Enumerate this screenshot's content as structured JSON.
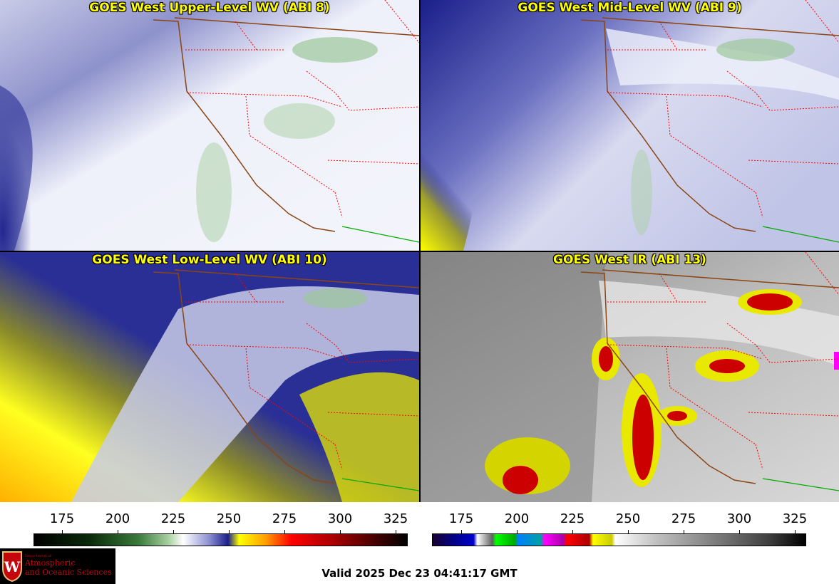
{
  "panels": [
    {
      "title": "GOES West Upper-Level WV (ABI 8)",
      "palette": "wv-upper"
    },
    {
      "title": "GOES West Mid-Level WV (ABI 9)",
      "palette": "wv-mid"
    },
    {
      "title": "GOES West Low-Level WV (ABI 10)",
      "palette": "wv-low"
    },
    {
      "title": "GOES West IR (ABI 13)",
      "palette": "ir"
    }
  ],
  "colorbars": [
    {
      "name": "wv-colorbar",
      "ticks": [
        "175",
        "200",
        "225",
        "250",
        "275",
        "300",
        "325"
      ]
    },
    {
      "name": "ir-colorbar",
      "ticks": [
        "175",
        "200",
        "225",
        "250",
        "275",
        "300",
        "325"
      ]
    }
  ],
  "logo": {
    "dept": "Department of",
    "line1": "Atmospheric",
    "line2": "and Oceanic Sciences"
  },
  "valid_time": "Valid 2025 Dec 23 04:41:17 GMT",
  "colors": {
    "title_text": "#ffff00",
    "state_border": "#ff0000",
    "coastline": "#8b4513",
    "mexico_border": "#00aa00"
  }
}
